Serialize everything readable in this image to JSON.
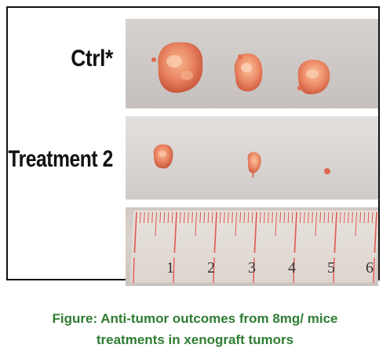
{
  "figure": {
    "rows": [
      {
        "label": "Ctrl*",
        "tumor_count": 3
      },
      {
        "label": "Treatment 2",
        "tumor_count": 3
      }
    ],
    "ruler": {
      "numbers": [
        "1",
        "2",
        "3",
        "4",
        "5",
        "6"
      ],
      "tick_color": "#e0584f"
    },
    "tumor_color": "#e8785a",
    "background_color": "#d4cfcc"
  },
  "caption": {
    "line1": "Figure: Anti-tumor outcomes from 8mg/ mice",
    "line2": "treatments in xenograft tumors",
    "color": "#2e7d32"
  }
}
